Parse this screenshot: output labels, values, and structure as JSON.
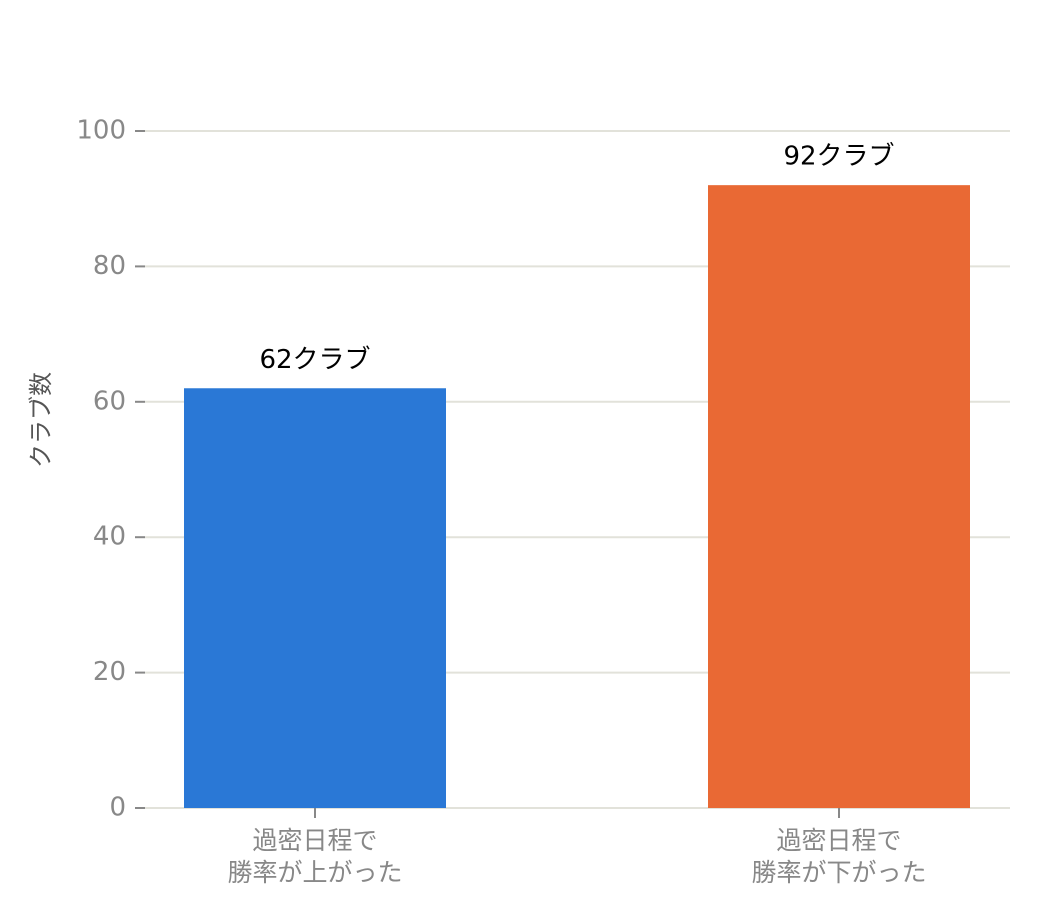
{
  "chart_data": {
    "type": "bar",
    "ylabel": "クラブ数",
    "categories": [
      [
        "過密日程で",
        "勝率が上がった"
      ],
      [
        "過密日程で",
        "勝率が下がった"
      ]
    ],
    "values": [
      62,
      92
    ],
    "value_labels": [
      "62クラブ",
      "92クラブ"
    ],
    "colors": [
      "#2a78d6",
      "#e96934"
    ],
    "ylim": [
      0,
      100
    ],
    "yticks": [
      0,
      20,
      40,
      60,
      80,
      100
    ],
    "grid": true
  }
}
